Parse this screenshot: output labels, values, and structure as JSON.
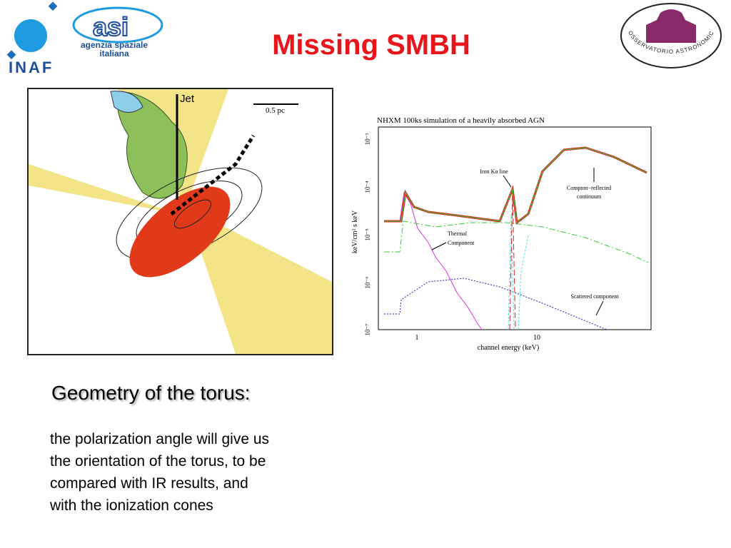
{
  "header": {
    "title": "Missing SMBH",
    "logos": {
      "inaf": "INAF",
      "asi": "asi",
      "asi_name": [
        "agenzia spaziale",
        "italiana"
      ],
      "brera": "OSSERVATORIO ASTRONOMICO DI BRERA"
    }
  },
  "figure_left": {
    "jet_label": "Jet",
    "scale_label": "0.5 pc"
  },
  "figure_right": {
    "title": "NHXM 100ks simulation of a heavily absorbed AGN",
    "y_label": "keV/cm² s keV",
    "x_label": "channel energy (keV)",
    "y_ticks": [
      "10⁻³",
      "10⁻⁴",
      "10⁻⁵",
      "10⁻⁶",
      "10⁻⁷"
    ],
    "x_ticks": [
      "1",
      "10"
    ],
    "annotations": [
      {
        "lines": [
          "Iron Kα line"
        ]
      },
      {
        "lines": [
          "Compton−reflected",
          "continuum"
        ]
      },
      {
        "lines": [
          "Thermal",
          "Component"
        ]
      },
      {
        "lines": [
          "Scattered component"
        ]
      }
    ]
  },
  "body": {
    "heading": "Geometry of the torus:",
    "lines": [
      "the polarization angle will give us",
      "the orientation of the torus, to be",
      "compared with IR results, and",
      "with the ionization cones"
    ]
  }
}
